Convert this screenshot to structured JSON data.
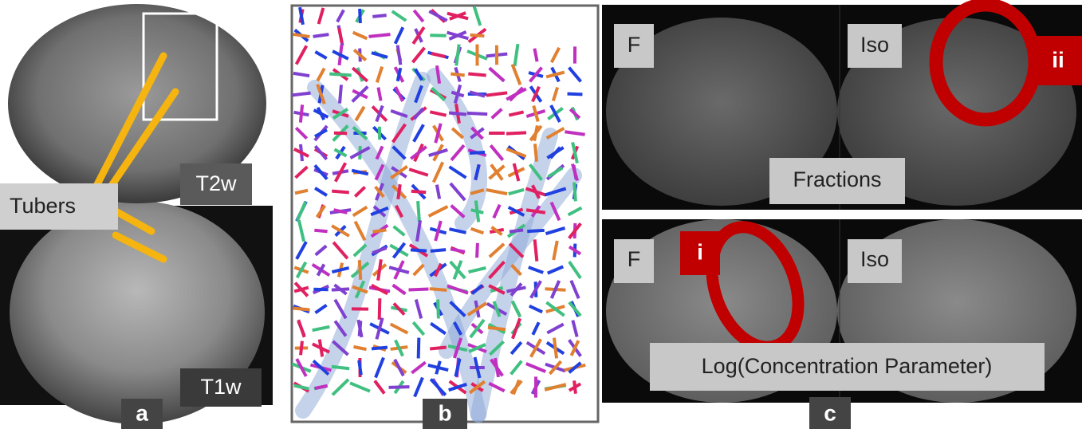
{
  "panel_a": {
    "label": "a",
    "top_image": "T2w",
    "bottom_image": "T1w",
    "annotation": "Tubers"
  },
  "panel_b": {
    "label": "b"
  },
  "panel_c": {
    "label": "c",
    "top_row": {
      "left": "F",
      "right": "Iso",
      "caption": "Fractions",
      "marker": "ii"
    },
    "bottom_row": {
      "left": "F",
      "right": "Iso",
      "caption": "Log(Concentration Parameter)",
      "marker": "i"
    }
  }
}
